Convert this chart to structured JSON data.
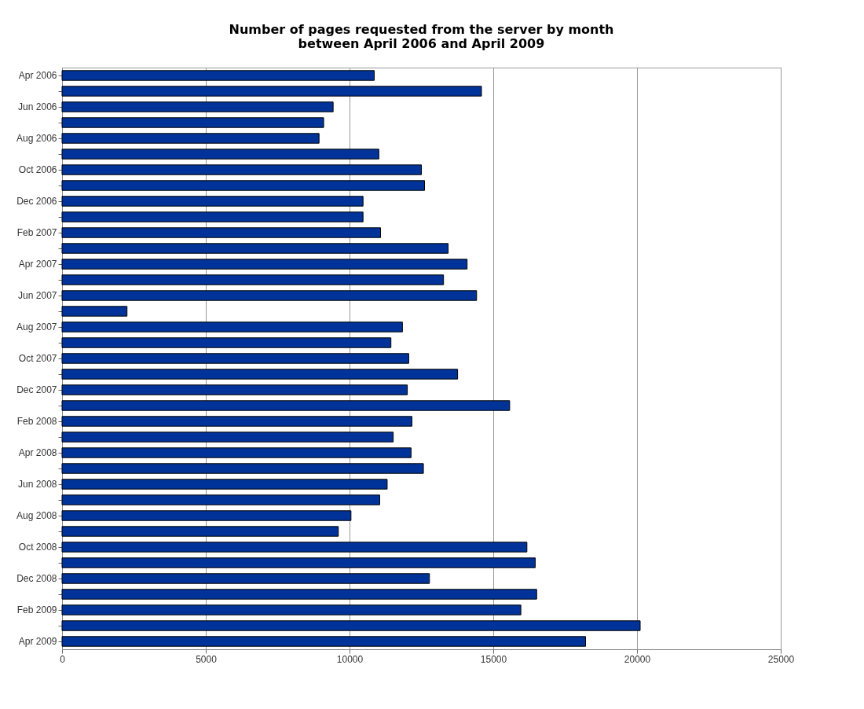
{
  "chart_data": {
    "type": "bar",
    "orientation": "horizontal",
    "title": [
      "Number of pages requested from the server by month",
      "between April 2006 and April 2009"
    ],
    "categories": [
      "Apr 2006",
      null,
      "Jun 2006",
      null,
      "Aug 2006",
      null,
      "Oct 2006",
      null,
      "Dec 2006",
      null,
      "Feb 2007",
      null,
      "Apr 2007",
      null,
      "Jun 2007",
      null,
      "Aug 2007",
      null,
      "Oct 2007",
      null,
      "Dec 2007",
      null,
      "Feb 2008",
      null,
      "Apr 2008",
      null,
      "Jun 2008",
      null,
      "Aug 2008",
      null,
      "Oct 2008",
      null,
      "Dec 2008",
      null,
      "Feb 2009",
      null,
      "Apr 2009"
    ],
    "values": [
      10860,
      14590,
      9430,
      9100,
      8940,
      11020,
      12500,
      12610,
      10470,
      10470,
      11080,
      13430,
      14090,
      13270,
      14420,
      2260,
      11840,
      11440,
      12060,
      13760,
      12010,
      15570,
      12170,
      11520,
      12140,
      12570,
      11310,
      11050,
      10050,
      9610,
      16170,
      16460,
      12780,
      16510,
      15960,
      20110,
      18210
    ],
    "color": "#003399",
    "xlim": [
      0,
      25000
    ],
    "xticks": [
      0,
      5000,
      10000,
      15000,
      20000,
      25000
    ],
    "grid": "x"
  }
}
